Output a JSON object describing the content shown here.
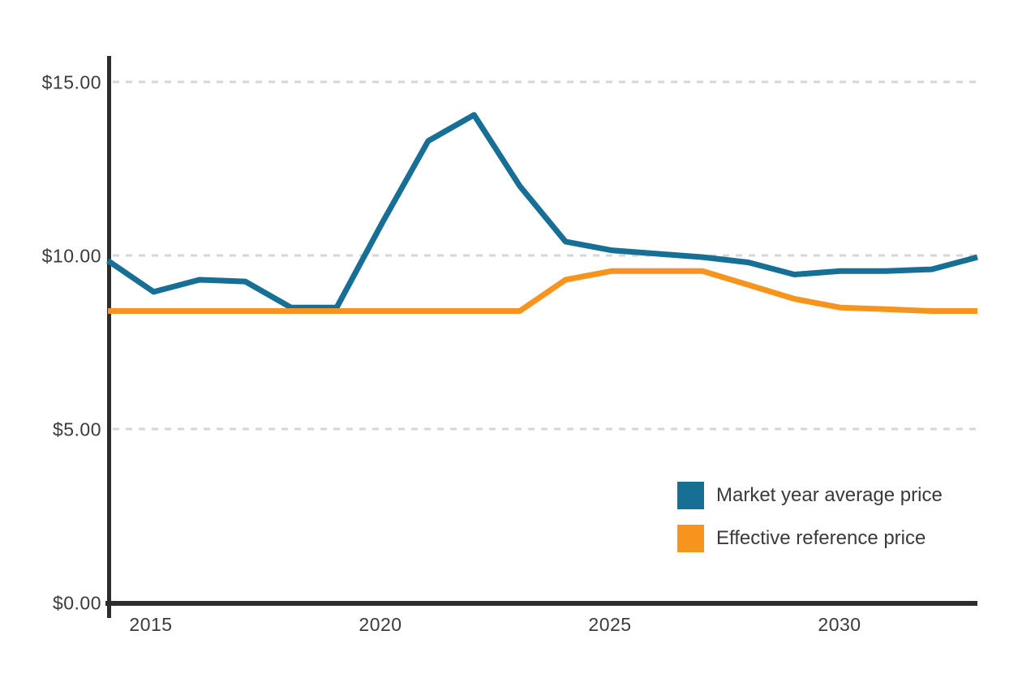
{
  "page": {
    "background_color": "#FFFFFF",
    "title": ""
  },
  "chart_data": {
    "type": "line",
    "title": "",
    "xlabel": "",
    "ylabel": "",
    "x": [
      2014,
      2015,
      2016,
      2017,
      2018,
      2019,
      2020,
      2021,
      2022,
      2023,
      2024,
      2025,
      2026,
      2027,
      2028,
      2029,
      2030,
      2031,
      2032,
      2033
    ],
    "series": [
      {
        "name": "Market year average price",
        "color": "#176F96",
        "values": [
          9.85,
          8.95,
          9.3,
          9.25,
          8.5,
          8.5,
          10.95,
          13.3,
          14.05,
          12.0,
          10.4,
          10.15,
          10.05,
          9.95,
          9.8,
          9.45,
          9.55,
          9.55,
          9.6,
          9.95
        ]
      },
      {
        "name": "Effective reference price",
        "color": "#F7941E",
        "values": [
          8.4,
          8.4,
          8.4,
          8.4,
          8.4,
          8.4,
          8.4,
          8.4,
          8.4,
          8.4,
          9.3,
          9.55,
          9.55,
          9.55,
          9.15,
          8.75,
          8.5,
          8.45,
          8.4,
          8.4
        ]
      }
    ],
    "xlim": [
      2014,
      2033
    ],
    "ylim": [
      0,
      15.7
    ],
    "x_ticks": [
      "2015",
      "2020",
      "2025",
      "2030"
    ],
    "x_tick_values": [
      2015,
      2020,
      2025,
      2030
    ],
    "y_tick_labels": [
      "$0.00",
      "$5.00",
      "$10.00",
      "$15.00"
    ],
    "y_tick_values": [
      0,
      5,
      10,
      15
    ],
    "grid": "horizontal-dashed",
    "grid_color": "#D6D6D6",
    "axis_color": "#2D2D2D",
    "tick_text_color": "#3B3B3B",
    "legend_text_color": "#3A3A3A",
    "legend_position": "inside-bottom-right",
    "line_width": 7
  }
}
